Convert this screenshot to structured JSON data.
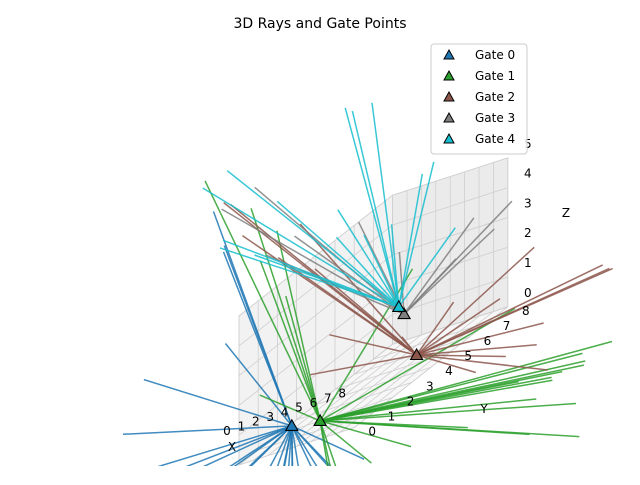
{
  "chart_data": {
    "type": "scatter",
    "subtype": "3d-rays",
    "title": "3D Rays and Gate Points",
    "xlabel": "X",
    "ylabel": "Y",
    "zlabel": "Z",
    "xlim": [
      0,
      8
    ],
    "ylim": [
      0,
      8
    ],
    "zlim": [
      0,
      5
    ],
    "x_ticks": [
      0,
      1,
      2,
      3,
      4,
      5,
      6,
      7,
      8
    ],
    "y_ticks": [
      0,
      1,
      2,
      3,
      4,
      5,
      6,
      7,
      8
    ],
    "z_ticks": [
      0,
      1,
      2,
      3,
      4,
      5
    ],
    "grid": true,
    "legend_position": "top-right",
    "series": [
      {
        "name": "Gate 0",
        "color": "#1f77b4",
        "gate": {
          "x": 2.6,
          "y": 0.8,
          "z": 0.5
        }
      },
      {
        "name": "Gate 1",
        "color": "#2ca02c",
        "gate": {
          "x": 4.3,
          "y": 1.0,
          "z": 0.3
        }
      },
      {
        "name": "Gate 2",
        "color": "#8c564b",
        "gate": {
          "x": 5.8,
          "y": 4.9,
          "z": 0.3
        }
      },
      {
        "name": "Gate 3",
        "color": "#7f7f7f",
        "gate": {
          "x": 4.0,
          "y": 5.6,
          "z": 1.6
        }
      },
      {
        "name": "Gate 4",
        "color": "#17becf",
        "gate": {
          "x": 2.3,
          "y": 6.6,
          "z": 1.6
        }
      }
    ]
  }
}
